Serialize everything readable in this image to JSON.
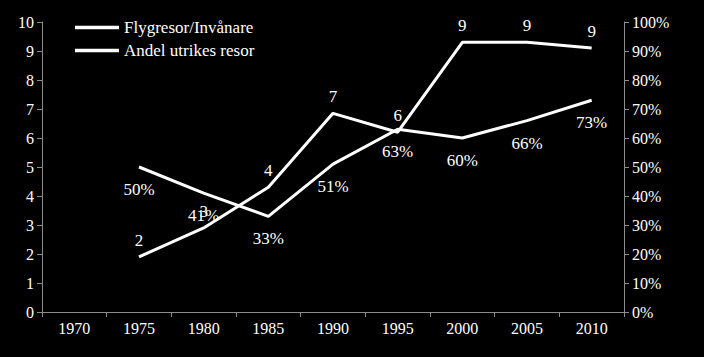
{
  "chart_data": {
    "type": "line",
    "categories": [
      "1970",
      "1975",
      "1980",
      "1985",
      "1990",
      "1995",
      "2000",
      "2005",
      "2010"
    ],
    "series": [
      {
        "name": "Flygresor/Invånare",
        "color": "#ffffff",
        "values": [
          null,
          1.9,
          2.9,
          4.3,
          6.85,
          6.2,
          9.3,
          9.3,
          9.1
        ],
        "value_labels": [
          null,
          "2",
          "3",
          "4",
          "7",
          "6",
          "9",
          "9",
          "9"
        ]
      },
      {
        "name": "Andel utrikes resor",
        "color": "#ffffff",
        "axis": "y2",
        "values": [
          null,
          50,
          41,
          33,
          51,
          63,
          60,
          66,
          73
        ],
        "value_labels": [
          null,
          "50%",
          "41%",
          "33%",
          "51%",
          "63%",
          "60%",
          "66%",
          "73%"
        ]
      }
    ],
    "ylim": [
      0,
      10
    ],
    "yticks": [
      0,
      1,
      2,
      3,
      4,
      5,
      6,
      7,
      8,
      9,
      10
    ],
    "y2lim": [
      0,
      100
    ],
    "y2ticks": [
      {
        "value": 0,
        "label": "0%"
      },
      {
        "value": 10,
        "label": "10%"
      },
      {
        "value": 20,
        "label": "20%"
      },
      {
        "value": 30,
        "label": "30%"
      },
      {
        "value": 40,
        "label": "40%"
      },
      {
        "value": 50,
        "label": "50%"
      },
      {
        "value": 60,
        "label": "60%"
      },
      {
        "value": 70,
        "label": "70%"
      },
      {
        "value": 80,
        "label": "80%"
      },
      {
        "value": 90,
        "label": "90%"
      },
      {
        "value": 100,
        "label": "100%"
      }
    ],
    "grid": false,
    "legend": "upper left",
    "data_labels": true
  }
}
